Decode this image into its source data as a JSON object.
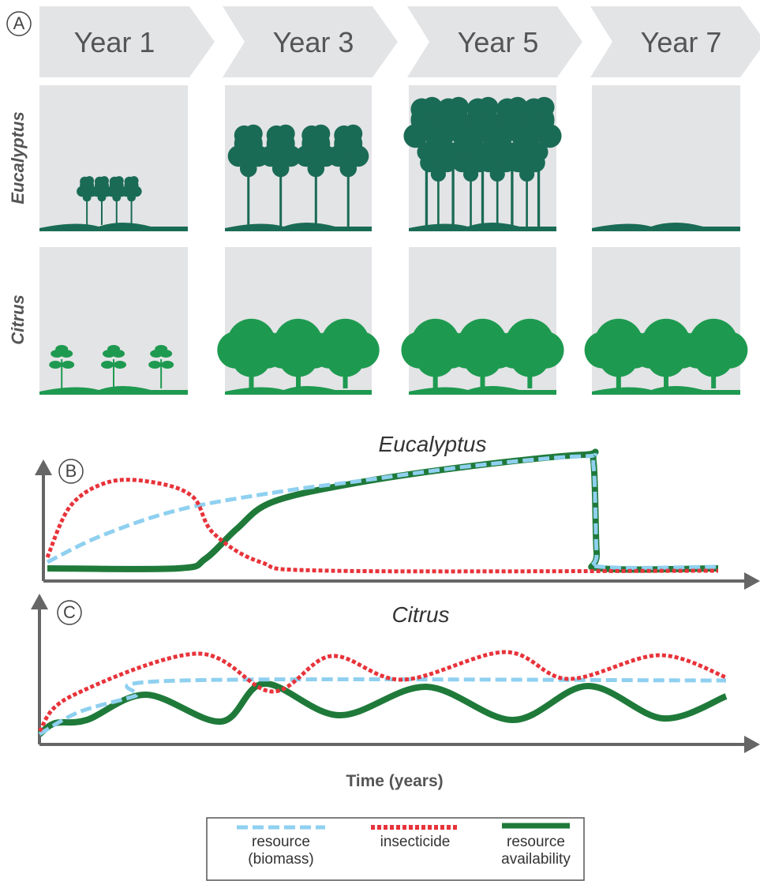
{
  "panel_a": {
    "label": "A",
    "years": [
      "Year 1",
      "Year 3",
      "Year 5",
      "Year 7"
    ],
    "rows": [
      "Eucalyptus",
      "Citrus"
    ]
  },
  "panel_b": {
    "label": "B",
    "title": "Eucalyptus"
  },
  "panel_c": {
    "label": "C",
    "title": "Citrus"
  },
  "x_axis_label": "Time (years)",
  "legend": [
    "resource (biomass)",
    "insecticide",
    "resource availability"
  ]
}
